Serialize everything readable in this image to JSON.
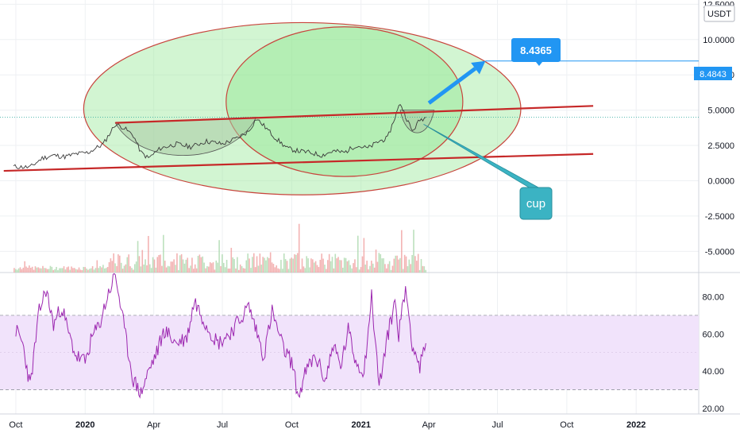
{
  "currency_label": "USDT",
  "price_badge": "8.4843",
  "target_label": "8.4365",
  "cup_label": "cup",
  "colors": {
    "price_line": "#3a3a3a",
    "trend_line": "#c62828",
    "ellipse_fill": "#9be89b",
    "ellipse_stroke": "#c8443c",
    "cup_fill": "#a8c9a3",
    "target_blue": "#2196f3",
    "cup_teal": "#3bb3c3",
    "rsi_line": "#9c27b0",
    "rsi_band": "#f1e3fb",
    "volume_up": "#a5d6a7",
    "volume_down": "#ef9a9a"
  },
  "chart_data": [
    {
      "type": "line",
      "name": "price",
      "y_ticks": [
        "12.5000",
        "10.0000",
        "7.5000",
        "5.0000",
        "2.5000",
        "0.0000",
        "-2.5000",
        "-5.0000"
      ],
      "y_tick_values": [
        12.5,
        10,
        7.5,
        5,
        2.5,
        0,
        -2.5,
        -5
      ],
      "ylim": [
        -6.5,
        12.8
      ],
      "x_ticks": [
        "Oct",
        "2020",
        "Apr",
        "Jul",
        "Oct",
        "2021",
        "Apr",
        "Jul",
        "Oct",
        "2022"
      ],
      "x_tick_dates": [
        "2019-10-01",
        "2020-01-01",
        "2020-04-01",
        "2020-07-01",
        "2020-10-01",
        "2021-01-01",
        "2021-04-01",
        "2021-07-01",
        "2021-10-01",
        "2022-01-01"
      ],
      "xlim": [
        "2019-09-10",
        "2022-03-25"
      ],
      "series": [
        {
          "x": [
            "2019-09-28",
            "2019-10-20",
            "2019-11-05",
            "2019-11-20",
            "2019-12-05",
            "2019-12-20",
            "2020-01-05",
            "2020-01-25",
            "2020-02-10",
            "2020-02-20",
            "2020-03-05",
            "2020-03-15",
            "2020-03-25",
            "2020-04-10",
            "2020-05-01",
            "2020-05-20",
            "2020-06-10",
            "2020-07-01",
            "2020-07-20",
            "2020-08-05",
            "2020-08-15",
            "2020-08-25",
            "2020-09-10",
            "2020-09-25",
            "2020-10-10",
            "2020-10-25",
            "2020-11-10",
            "2020-11-25",
            "2020-12-10",
            "2020-12-25",
            "2021-01-10",
            "2021-01-25",
            "2021-02-05",
            "2021-02-15",
            "2021-02-22",
            "2021-03-01",
            "2021-03-10",
            "2021-03-20",
            "2021-03-28"
          ],
          "y": [
            1,
            0.95,
            1.6,
            1.8,
            1.7,
            1.9,
            2.0,
            2.6,
            4.0,
            3.8,
            3.2,
            2.0,
            1.6,
            2.3,
            2.6,
            2.4,
            2.8,
            2.6,
            3.0,
            3.5,
            4.4,
            3.9,
            3.0,
            2.3,
            2.1,
            2.0,
            1.8,
            2.1,
            2.0,
            2.5,
            2.3,
            2.8,
            3.0,
            4.5,
            5.5,
            4.6,
            3.5,
            4.3,
            4.5
          ]
        }
      ],
      "annotations": [
        {
          "type": "trend_line",
          "from": [
            "2019-09-15",
            0.7
          ],
          "to": [
            "2021-11-05",
            1.9
          ]
        },
        {
          "type": "trend_line",
          "from": [
            "2020-02-10",
            4.1
          ],
          "to": [
            "2021-11-05",
            5.3
          ]
        },
        {
          "type": "ellipse",
          "center": [
            "2020-10-15",
            5.1
          ],
          "rx_days": 290,
          "ry": 6.1
        },
        {
          "type": "ellipse",
          "center": [
            "2020-12-10",
            5.6
          ],
          "rx_days": 157,
          "ry": 5.3
        },
        {
          "type": "cup_arc",
          "from": [
            "2020-02-10",
            4.1
          ],
          "to": [
            "2020-08-15",
            4.5
          ],
          "bottom": 1.3
        },
        {
          "type": "cup_arc",
          "from": [
            "2021-02-22",
            5.0
          ],
          "to": [
            "2021-04-08",
            5.0
          ],
          "bottom": 3.2
        },
        {
          "type": "arrow",
          "from": [
            "2021-04-01",
            5.5
          ],
          "to": [
            "2021-06-15",
            8.4843
          ]
        },
        {
          "type": "horizontal_line",
          "y": 8.4843,
          "from": "2021-06-15"
        }
      ]
    },
    {
      "type": "line",
      "name": "RSI",
      "y_ticks": [
        "80.00",
        "60.00",
        "40.00",
        "20.00"
      ],
      "y_tick_values": [
        80,
        60,
        40,
        20
      ],
      "ylim": [
        17,
        93
      ],
      "band": [
        30,
        70
      ],
      "midline": 50,
      "x": [
        "2019-10-01",
        "2019-10-10",
        "2019-10-20",
        "2019-11-01",
        "2019-11-10",
        "2019-11-20",
        "2019-12-01",
        "2019-12-10",
        "2019-12-20",
        "2020-01-01",
        "2020-01-10",
        "2020-01-20",
        "2020-02-01",
        "2020-02-10",
        "2020-02-15",
        "2020-02-25",
        "2020-03-05",
        "2020-03-15",
        "2020-03-25",
        "2020-04-05",
        "2020-04-15",
        "2020-05-01",
        "2020-05-15",
        "2020-05-25",
        "2020-06-10",
        "2020-06-25",
        "2020-07-10",
        "2020-07-25",
        "2020-08-05",
        "2020-08-15",
        "2020-08-25",
        "2020-09-05",
        "2020-09-20",
        "2020-10-01",
        "2020-10-10",
        "2020-10-20",
        "2020-11-01",
        "2020-11-15",
        "2020-11-25",
        "2020-12-05",
        "2020-12-15",
        "2020-12-25",
        "2021-01-05",
        "2021-01-15",
        "2021-01-25",
        "2021-02-05",
        "2021-02-15",
        "2021-02-20",
        "2021-03-01",
        "2021-03-10",
        "2021-03-20",
        "2021-03-28"
      ],
      "y": [
        62,
        55,
        32,
        72,
        84,
        65,
        75,
        60,
        48,
        45,
        58,
        65,
        82,
        92,
        80,
        55,
        35,
        28,
        40,
        50,
        62,
        55,
        58,
        78,
        65,
        55,
        60,
        68,
        75,
        62,
        48,
        72,
        52,
        45,
        26,
        40,
        48,
        35,
        55,
        42,
        62,
        45,
        40,
        80,
        32,
        58,
        78,
        60,
        85,
        55,
        42,
        55
      ]
    }
  ]
}
